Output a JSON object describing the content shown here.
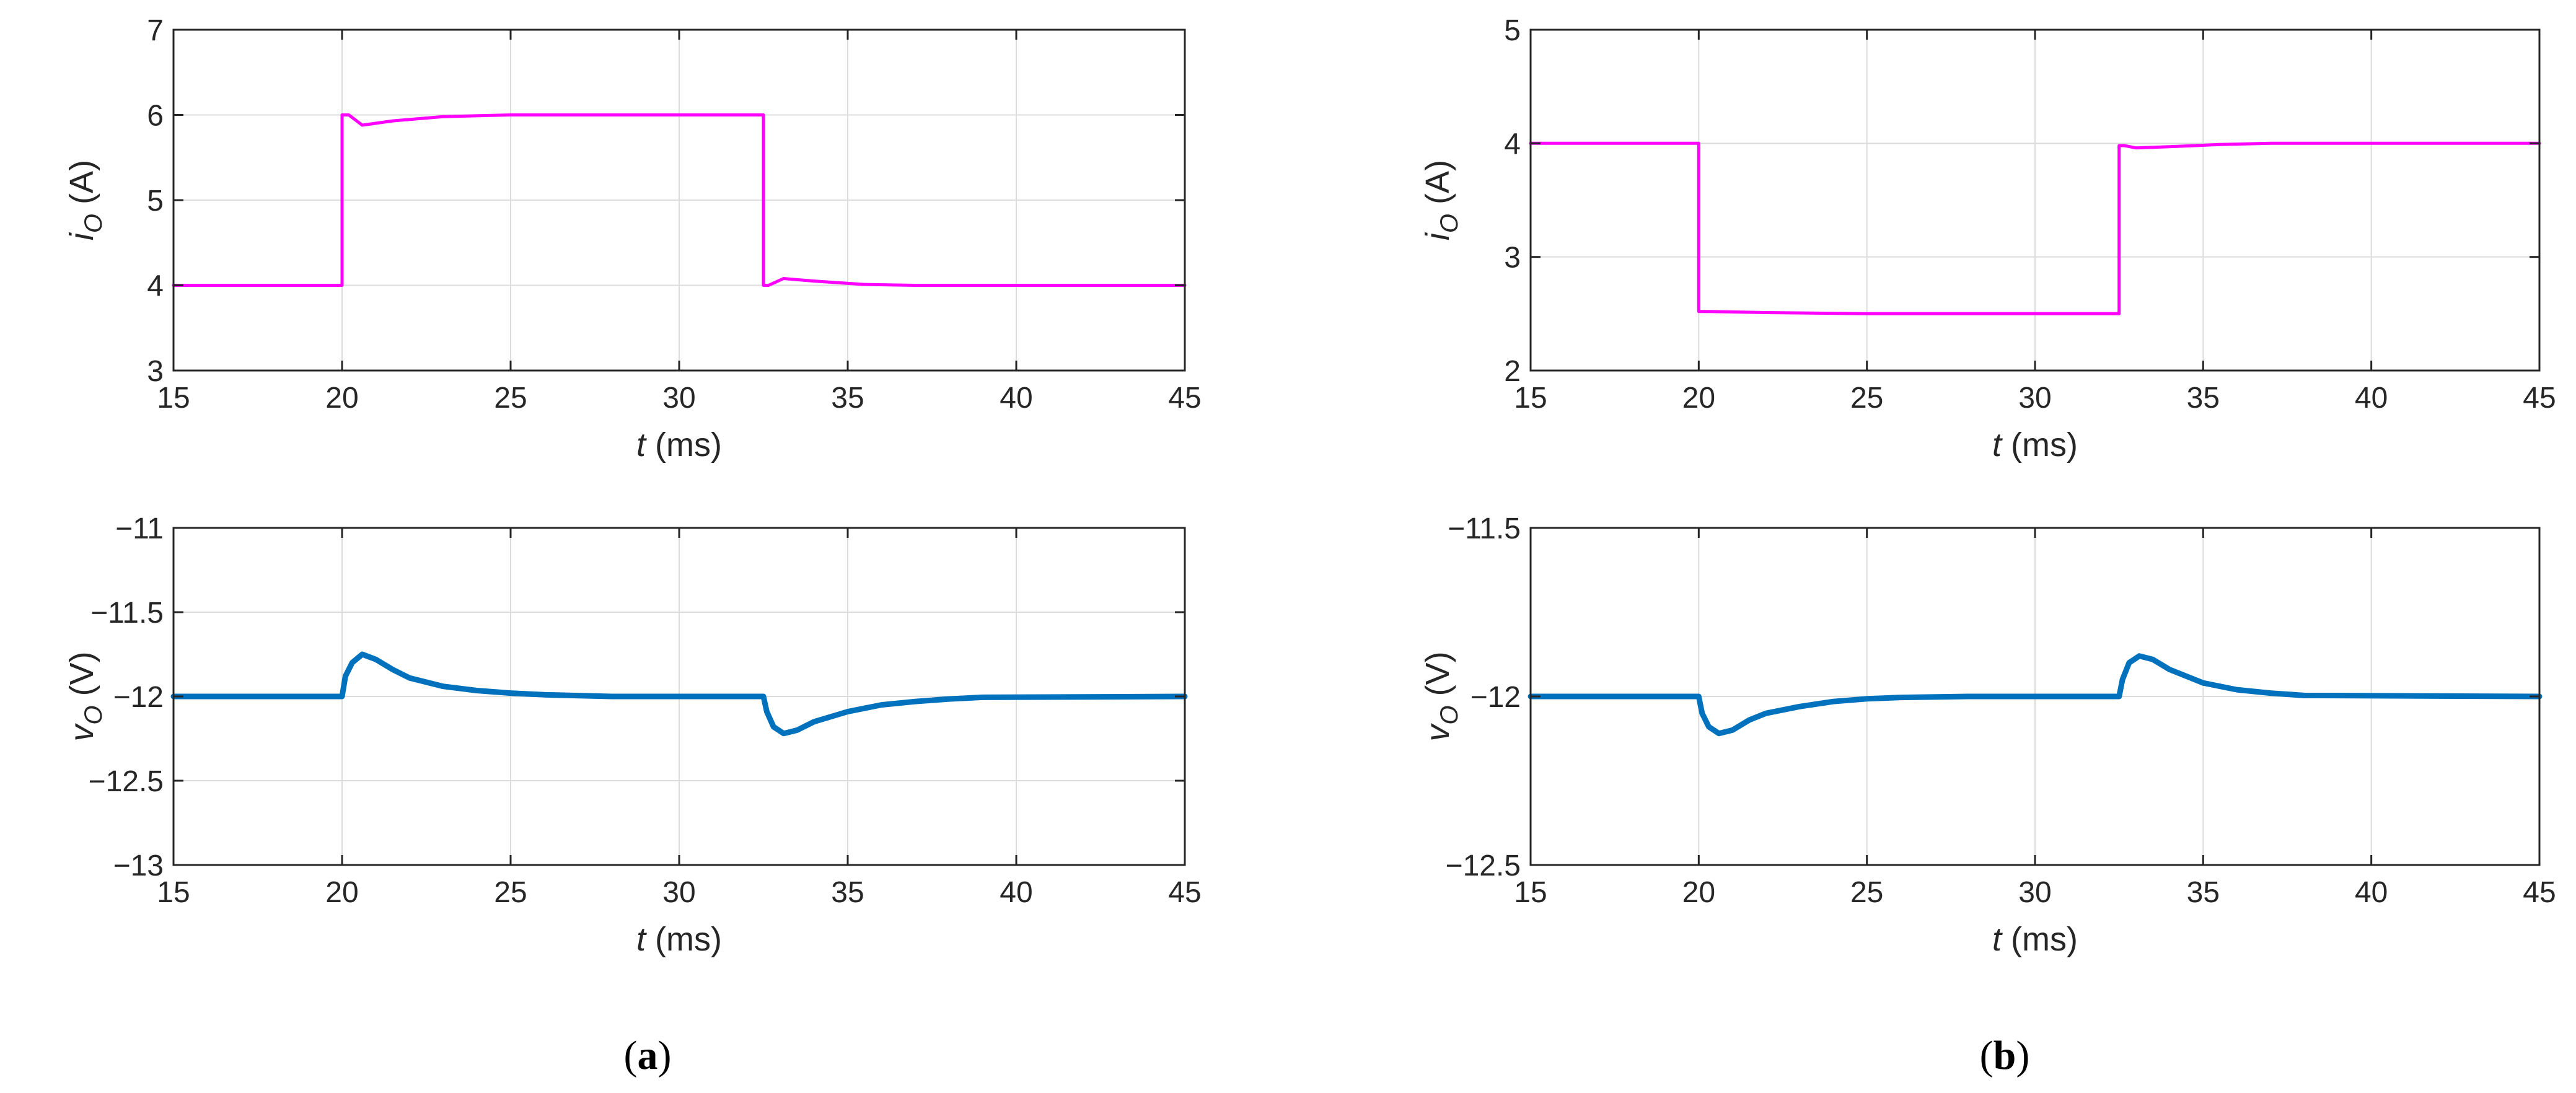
{
  "chart_data": [
    {
      "type": "line",
      "panel": "a",
      "xlabel": "t (ms)",
      "ylabel": "iO (A)",
      "xlim": [
        15,
        45
      ],
      "ylim": [
        3,
        7
      ],
      "xticks": [
        "15",
        "20",
        "25",
        "30",
        "35",
        "40",
        "45"
      ],
      "yticks": [
        "3",
        "4",
        "5",
        "6",
        "7"
      ],
      "grid": true,
      "series": [
        {
          "color": "#ff00ff",
          "x": [
            15,
            20,
            20,
            20.2,
            20.6,
            21.5,
            23,
            25,
            32.5,
            32.5,
            32.65,
            33.1,
            34,
            35.5,
            37,
            45
          ],
          "y": [
            4,
            4,
            6,
            6,
            5.88,
            5.93,
            5.98,
            6,
            6,
            4,
            4.0,
            4.08,
            4.05,
            4.01,
            4,
            4
          ]
        }
      ]
    },
    {
      "type": "line",
      "panel": "a",
      "xlabel": "t (ms)",
      "ylabel": "vO (V)",
      "xlim": [
        15,
        45
      ],
      "ylim": [
        -13,
        -11
      ],
      "xticks": [
        "15",
        "20",
        "25",
        "30",
        "35",
        "40",
        "45"
      ],
      "yticks": [
        "−11",
        "−11.5",
        "−12",
        "−12.5",
        "−13"
      ],
      "grid": true,
      "series": [
        {
          "color": "#0072bd",
          "x": [
            15,
            20,
            20.1,
            20.3,
            20.6,
            21,
            21.5,
            22,
            23,
            24,
            25,
            26,
            28,
            32.5,
            32.6,
            32.8,
            33.1,
            33.5,
            34,
            35,
            36,
            37,
            38,
            39,
            45
          ],
          "y": [
            -12,
            -12,
            -11.88,
            -11.8,
            -11.75,
            -11.78,
            -11.84,
            -11.89,
            -11.94,
            -11.965,
            -11.98,
            -11.99,
            -12,
            -12,
            -12.09,
            -12.18,
            -12.22,
            -12.2,
            -12.15,
            -12.09,
            -12.05,
            -12.03,
            -12.015,
            -12.005,
            -12
          ]
        }
      ]
    },
    {
      "type": "line",
      "panel": "b",
      "xlabel": "t (ms)",
      "ylabel": "iO (A)",
      "xlim": [
        15,
        45
      ],
      "ylim": [
        2,
        5
      ],
      "xticks": [
        "15",
        "20",
        "25",
        "30",
        "35",
        "40",
        "45"
      ],
      "yticks": [
        "2",
        "3",
        "4",
        "5"
      ],
      "grid": true,
      "series": [
        {
          "color": "#ff00ff",
          "x": [
            15,
            20,
            20,
            20.3,
            22,
            25,
            32.5,
            32.5,
            32.65,
            33,
            34,
            35.5,
            37,
            45
          ],
          "y": [
            4,
            4,
            2.52,
            2.52,
            2.51,
            2.5,
            2.5,
            3.98,
            3.98,
            3.96,
            3.97,
            3.99,
            4,
            4
          ]
        }
      ]
    },
    {
      "type": "line",
      "panel": "b",
      "xlabel": "t (ms)",
      "ylabel": "vO (V)",
      "xlim": [
        15,
        45
      ],
      "ylim": [
        -12.5,
        -11.5
      ],
      "xticks": [
        "15",
        "20",
        "25",
        "30",
        "35",
        "40",
        "45"
      ],
      "yticks": [
        "−11.5",
        "−12",
        "−12.5"
      ],
      "grid": true,
      "series": [
        {
          "color": "#0072bd",
          "x": [
            15,
            20,
            20.1,
            20.3,
            20.6,
            21,
            21.5,
            22,
            23,
            24,
            25,
            26,
            28,
            32.5,
            32.6,
            32.8,
            33.1,
            33.5,
            34,
            35,
            36,
            37,
            38,
            45
          ],
          "y": [
            -12,
            -12,
            -12.05,
            -12.09,
            -12.11,
            -12.1,
            -12.07,
            -12.05,
            -12.03,
            -12.015,
            -12.007,
            -12.003,
            -12,
            -12,
            -11.95,
            -11.9,
            -11.88,
            -11.89,
            -11.92,
            -11.96,
            -11.98,
            -11.99,
            -11.997,
            -12
          ]
        }
      ]
    }
  ],
  "panel_labels": {
    "a": "a",
    "b": "b"
  }
}
